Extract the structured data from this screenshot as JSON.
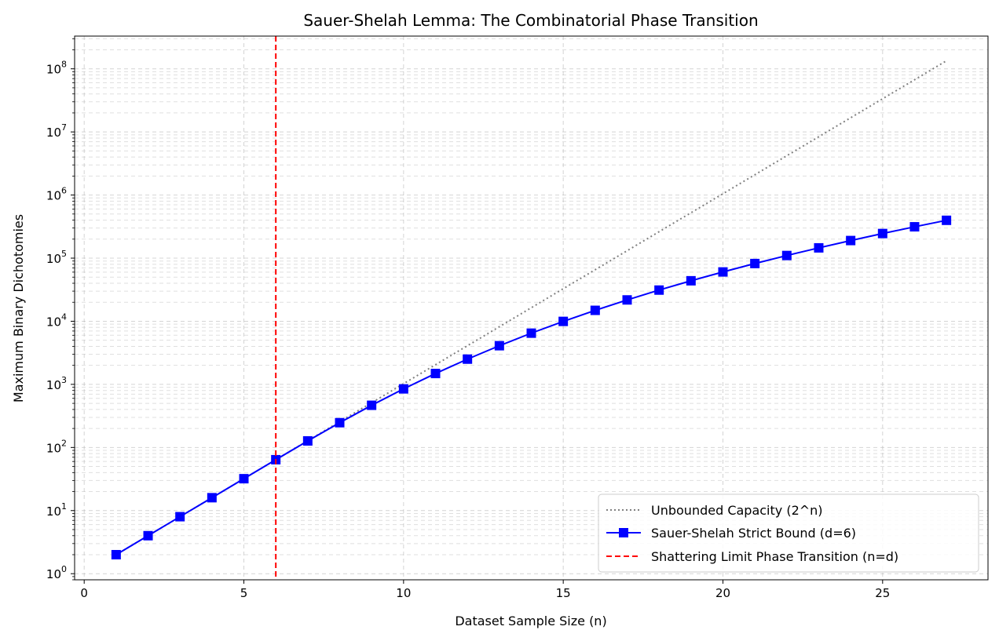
{
  "chart_data": {
    "type": "line",
    "title": "Sauer-Shelah Lemma: The Combinatorial Phase Transition",
    "xlabel": "Dataset Sample Size (n)",
    "ylabel": "Maximum Binary Dichotomies",
    "xlim": [
      -0.3,
      28.3
    ],
    "ylim": [
      0.8,
      330000000
    ],
    "yscale": "log",
    "x_ticks": [
      0,
      5,
      10,
      15,
      20,
      25
    ],
    "y_tick_exponents": [
      0,
      1,
      2,
      3,
      4,
      5,
      6,
      7,
      8
    ],
    "grid": true,
    "legend_position": "bottom-right",
    "series": [
      {
        "name": "Unbounded Capacity (2^n)",
        "style": "dotted",
        "color": "#808080",
        "x": [
          1,
          2,
          3,
          4,
          5,
          6,
          7,
          8,
          9,
          10,
          11,
          12,
          13,
          14,
          15,
          16,
          17,
          18,
          19,
          20,
          21,
          22,
          23,
          24,
          25,
          26,
          27
        ],
        "values": [
          2,
          4,
          8,
          16,
          32,
          64,
          128,
          256,
          512,
          1024,
          2048,
          4096,
          8192,
          16384,
          32768,
          65536,
          131072,
          262144,
          524288,
          1048576,
          2097152,
          4194304,
          8388608,
          16777216,
          33554432,
          67108864,
          134217728
        ]
      },
      {
        "name": "Sauer-Shelah Strict Bound (d=6)",
        "style": "solid",
        "marker": "square",
        "color": "#0000ff",
        "x": [
          1,
          2,
          3,
          4,
          5,
          6,
          7,
          8,
          9,
          10,
          11,
          12,
          13,
          14,
          15,
          16,
          17,
          18,
          19,
          20,
          21,
          22,
          23,
          24,
          25,
          26,
          27
        ],
        "values": [
          2,
          4,
          8,
          16,
          32,
          64,
          127,
          247,
          466,
          848,
          1486,
          2510,
          4096,
          6476,
          9949,
          14893,
          21778,
          31180,
          43796,
          60460,
          82160,
          110056,
          145499,
          190051,
          245506,
          313912,
          397594
        ]
      },
      {
        "name": "Shattering Limit Phase Transition (n=d)",
        "style": "dashed",
        "color": "#ff0000",
        "vertical_x": 6
      }
    ]
  }
}
